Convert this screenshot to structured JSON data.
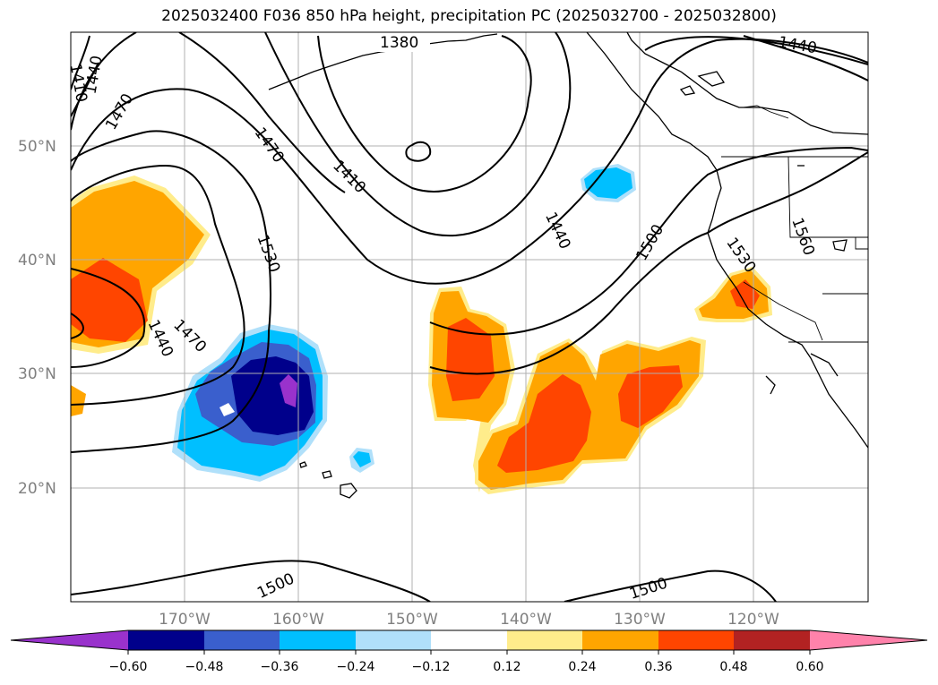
{
  "title": "2025032400 F036 850 hPa height, precipitation PC (2025032700 - 2025032800)",
  "map": {
    "lon_ticks": [
      "170°W",
      "160°W",
      "150°W",
      "140°W",
      "130°W",
      "120°W"
    ],
    "lat_ticks": [
      "50°N",
      "40°N",
      "30°N",
      "20°N"
    ],
    "contour_labels": [
      "1380",
      "1410",
      "1440",
      "1470",
      "1500",
      "1530",
      "1560"
    ],
    "grid": true
  },
  "colorbar": {
    "ticks": [
      "−0.60",
      "−0.48",
      "−0.36",
      "−0.24",
      "−0.12",
      "0.12",
      "0.24",
      "0.36",
      "0.48",
      "0.60"
    ],
    "colors": [
      "#9932cc",
      "#00008b",
      "#3a5fcd",
      "#00bfff",
      "#b0e0fa",
      "#ffffff",
      "#ffec8b",
      "#ffa500",
      "#ff4500",
      "#b22222",
      "#ff82ab"
    ]
  }
}
